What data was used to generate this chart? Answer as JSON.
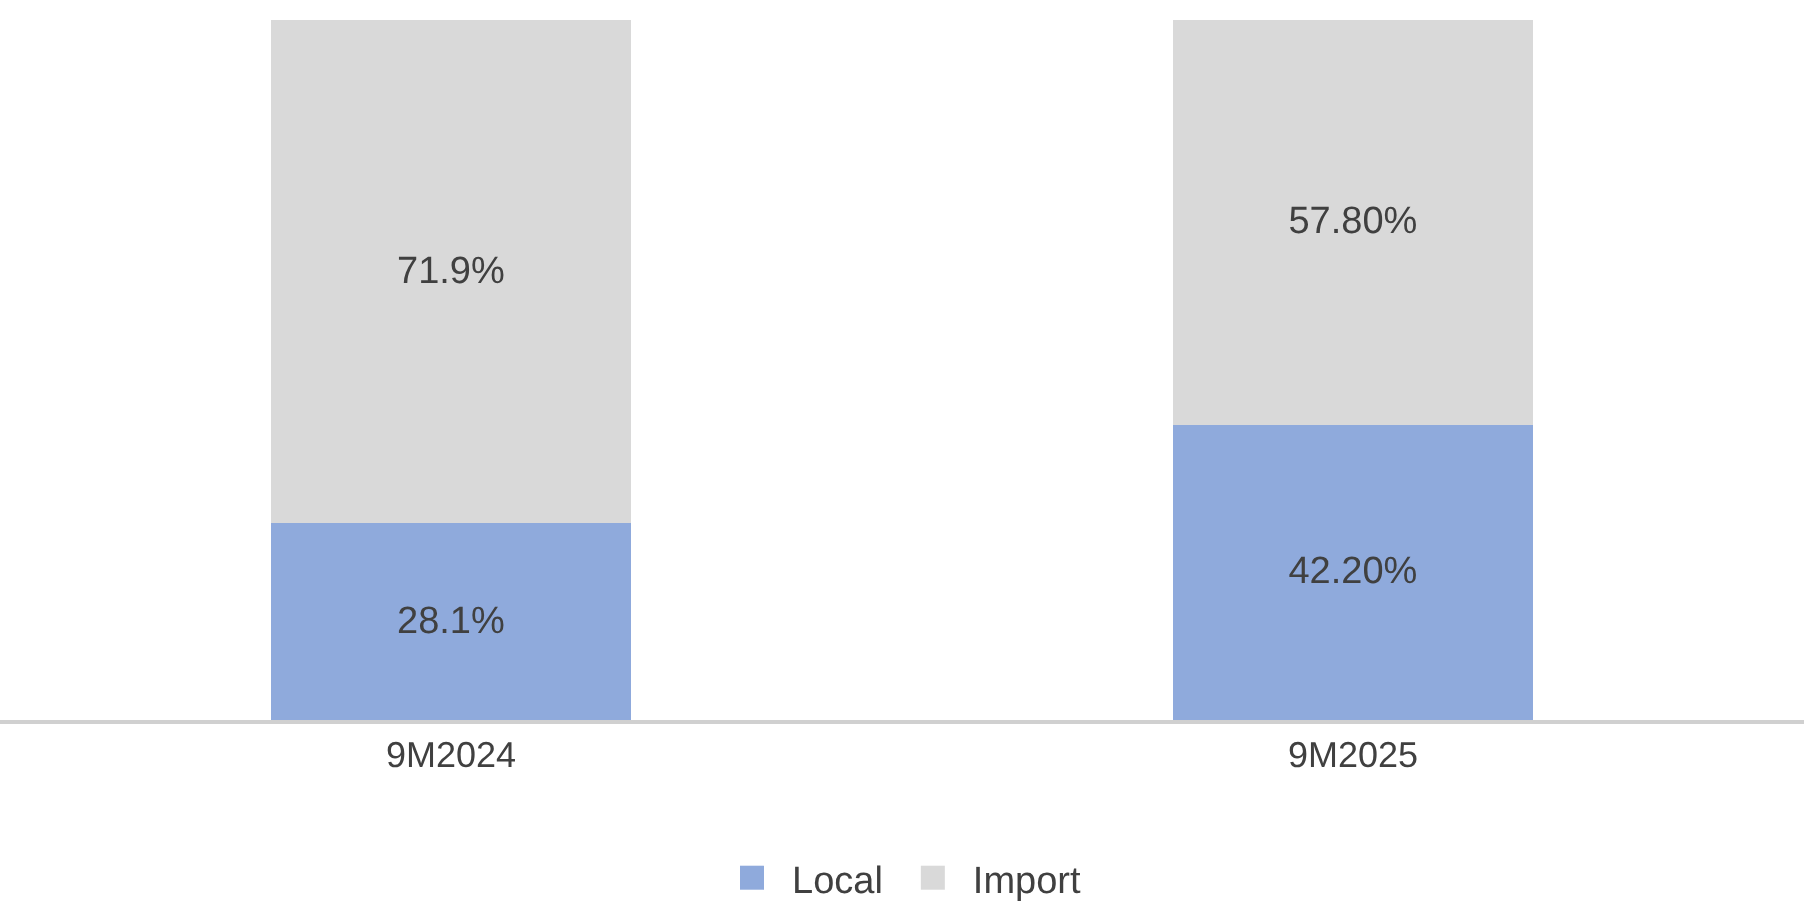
{
  "chart_data": {
    "type": "bar",
    "stacked": true,
    "categories": [
      "9M2024",
      "9M2025"
    ],
    "series": [
      {
        "name": "Local",
        "color": "#8faadc",
        "values": [
          28.1,
          42.2
        ],
        "value_labels": [
          "28.1%",
          "42.20%"
        ]
      },
      {
        "name": "Import",
        "color": "#d9d9d9",
        "values": [
          71.9,
          57.8
        ],
        "value_labels": [
          "71.9%",
          "57.80%"
        ]
      }
    ],
    "ylim": [
      0,
      100
    ],
    "legend": "bottom"
  }
}
